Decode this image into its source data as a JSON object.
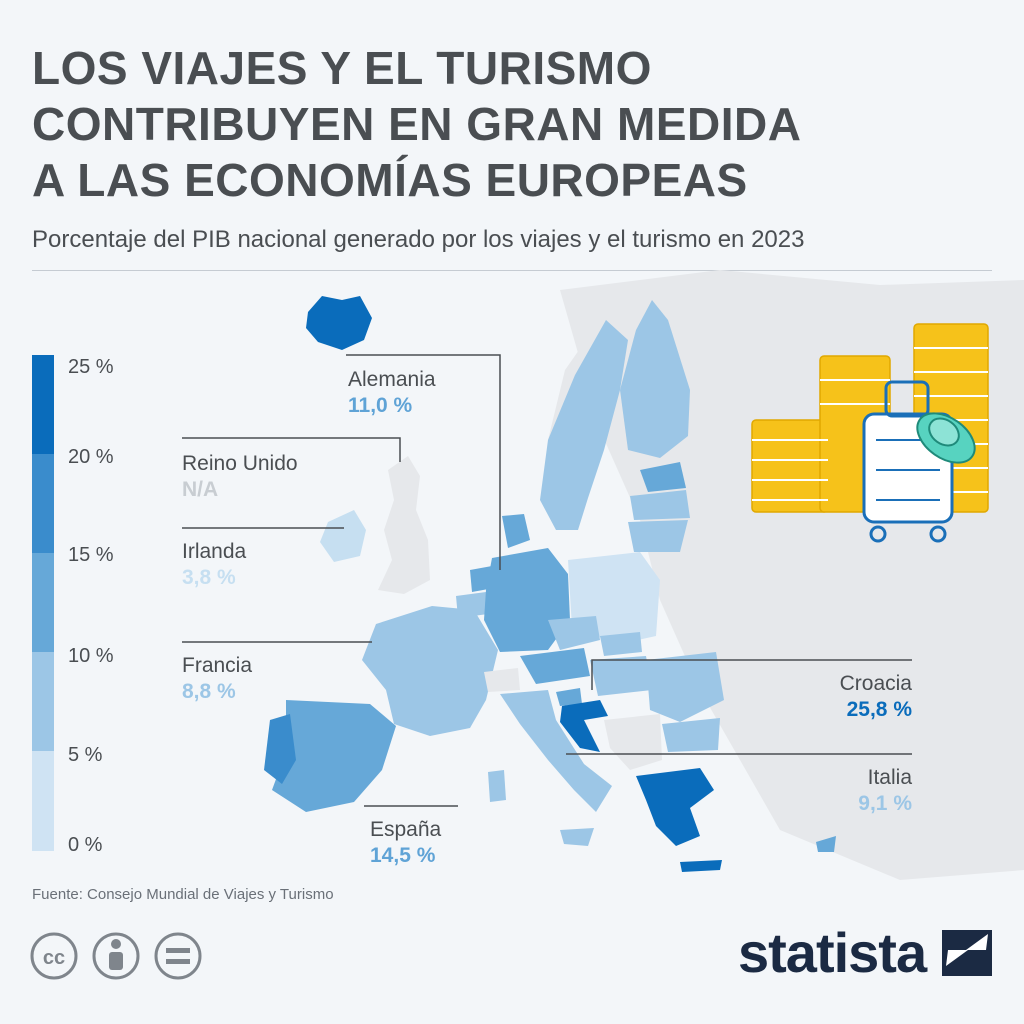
{
  "title_lines": [
    "LOS VIAJES Y EL TURISMO",
    "CONTRIBUYEN EN GRAN MEDIDA",
    "A LAS ECONOMÍAS EUROPEAS"
  ],
  "subtitle": "Porcentaje del PIB nacional generado por los viajes y el turismo en 2023",
  "legend": {
    "ticks": [
      "25 %",
      "20 %",
      "15 %",
      "10 %",
      "5 %",
      "0 %"
    ],
    "colors": [
      "#0a6cbb",
      "#3a8ccc",
      "#66a8d8",
      "#9cc6e6",
      "#cfe3f3"
    ]
  },
  "callouts": [
    {
      "country": "Alemania",
      "value": "11,0 %",
      "color": "#5fa3d6"
    },
    {
      "country": "Reino Unido",
      "value": "N/A",
      "color": "#c8cdd2"
    },
    {
      "country": "Irlanda",
      "value": "3,8 %",
      "color": "#c6dff1"
    },
    {
      "country": "Francia",
      "value": "8,8 %",
      "color": "#9cc6e6"
    },
    {
      "country": "España",
      "value": "14,5 %",
      "color": "#5fa3d6"
    },
    {
      "country": "Croacia",
      "value": "25,8 %",
      "color": "#0a6cbb"
    },
    {
      "country": "Italia",
      "value": "9,1 %",
      "color": "#9cc6e6"
    }
  ],
  "source": "Fuente: Consejo Mundial de Viajes y Turismo",
  "license_icons": [
    "cc",
    "by",
    "nd"
  ],
  "brand": "statista"
}
